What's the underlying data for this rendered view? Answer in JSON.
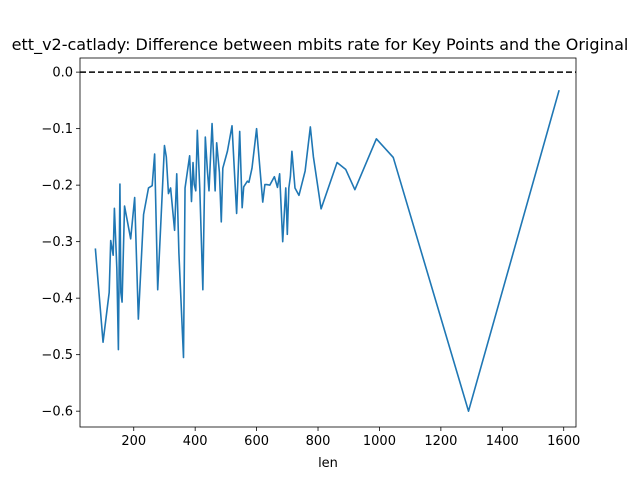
{
  "chart_data": {
    "type": "line",
    "title": "ett_v2-catlady: Difference between mbits rate for Key Points and the Original",
    "xlabel": "len",
    "ylabel": "",
    "xlim": [
      25,
      1640
    ],
    "ylim": [
      -0.628,
      0.025
    ],
    "xticks": [
      200,
      400,
      600,
      800,
      1000,
      1200,
      1400,
      1600
    ],
    "xtick_labels": [
      "200",
      "400",
      "600",
      "800",
      "1000",
      "1200",
      "1400",
      "1600"
    ],
    "yticks": [
      0.0,
      -0.1,
      -0.2,
      -0.3,
      -0.4,
      -0.5,
      -0.6
    ],
    "ytick_labels": [
      "0.0",
      "−0.1",
      "−0.2",
      "−0.3",
      "−0.4",
      "−0.5",
      "−0.6"
    ],
    "reference_line": {
      "y": 0.0,
      "style": "dashed",
      "color": "#000000"
    },
    "grid": false,
    "series": [
      {
        "color": "#1f77b4",
        "x": [
          75,
          100,
          120,
          125,
          133,
          137,
          145,
          150,
          155,
          158,
          162,
          170,
          190,
          203,
          215,
          232,
          248,
          260,
          268,
          278,
          300,
          306,
          313,
          320,
          333,
          340,
          347,
          362,
          367,
          382,
          388,
          393,
          397,
          402,
          407,
          415,
          425,
          433,
          440,
          445,
          455,
          465,
          470,
          479,
          485,
          490,
          505,
          520,
          535,
          545,
          553,
          558,
          570,
          575,
          585,
          600,
          620,
          627,
          633,
          643,
          658,
          668,
          675,
          685,
          695,
          700,
          705,
          710,
          715,
          725,
          738,
          758,
          775,
          785,
          810,
          862,
          890,
          920,
          990,
          1045,
          1290,
          1585
        ],
        "y": [
          -0.312,
          -0.478,
          -0.39,
          -0.298,
          -0.324,
          -0.241,
          -0.348,
          -0.491,
          -0.198,
          -0.39,
          -0.407,
          -0.237,
          -0.295,
          -0.222,
          -0.437,
          -0.252,
          -0.205,
          -0.201,
          -0.145,
          -0.385,
          -0.13,
          -0.15,
          -0.215,
          -0.205,
          -0.28,
          -0.18,
          -0.32,
          -0.505,
          -0.205,
          -0.148,
          -0.229,
          -0.16,
          -0.199,
          -0.21,
          -0.103,
          -0.206,
          -0.385,
          -0.115,
          -0.176,
          -0.21,
          -0.091,
          -0.21,
          -0.125,
          -0.178,
          -0.265,
          -0.17,
          -0.14,
          -0.095,
          -0.25,
          -0.105,
          -0.24,
          -0.203,
          -0.193,
          -0.195,
          -0.17,
          -0.1,
          -0.23,
          -0.199,
          -0.199,
          -0.2,
          -0.185,
          -0.204,
          -0.18,
          -0.3,
          -0.205,
          -0.287,
          -0.205,
          -0.185,
          -0.14,
          -0.205,
          -0.218,
          -0.175,
          -0.097,
          -0.15,
          -0.242,
          -0.16,
          -0.172,
          -0.208,
          -0.118,
          -0.151,
          -0.6,
          -0.032
        ]
      }
    ]
  }
}
